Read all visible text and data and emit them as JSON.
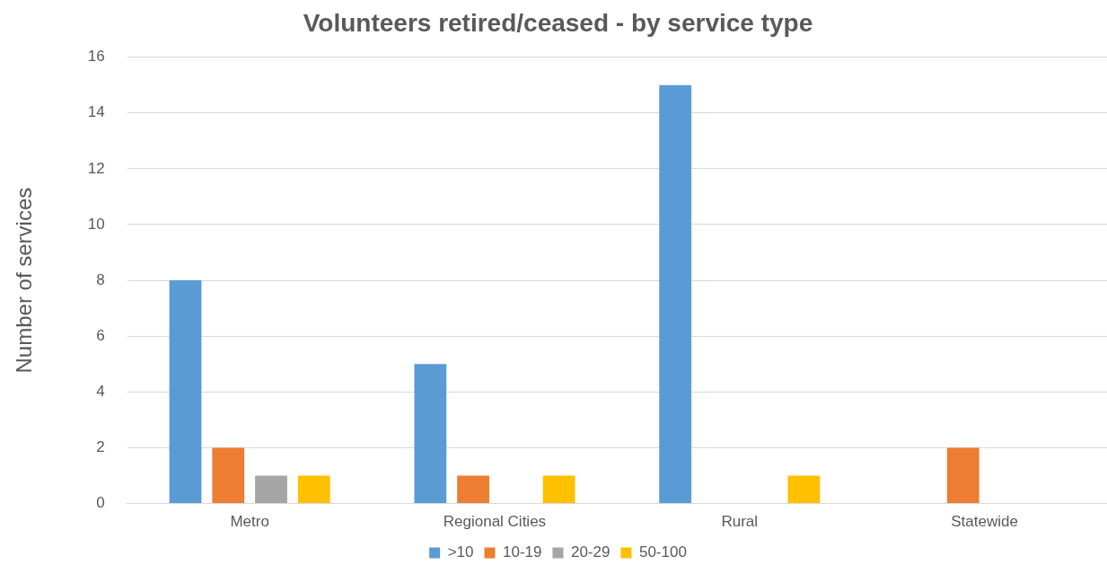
{
  "chart_data": {
    "type": "bar",
    "title": "Volunteers retired/ceased - by service type",
    "ylabel": "Number of services",
    "categories": [
      "Metro",
      "Regional Cities",
      "Rural",
      "Statewide"
    ],
    "series": [
      {
        "name": ">10",
        "color": "#5b9bd5",
        "values": [
          8,
          5,
          15,
          0
        ]
      },
      {
        "name": "10-19",
        "color": "#ed7d31",
        "values": [
          2,
          1,
          0,
          2
        ]
      },
      {
        "name": "20-29",
        "color": "#a5a5a5",
        "values": [
          1,
          0,
          0,
          0
        ]
      },
      {
        "name": "50-100",
        "color": "#ffc000",
        "values": [
          1,
          1,
          1,
          0
        ]
      }
    ],
    "ylim": [
      0,
      16
    ],
    "yticks": [
      0,
      2,
      4,
      6,
      8,
      10,
      12,
      14,
      16
    ],
    "grid": "y",
    "legend": "bottom"
  }
}
